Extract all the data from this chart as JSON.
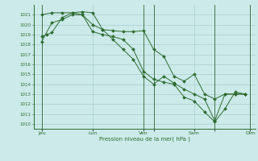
{
  "background_color": "#cceaea",
  "grid_color": "#aacccc",
  "line_color": "#2d6b2d",
  "marker_color": "#2d6b2d",
  "xlabel_text": "Pression niveau de la mer( hPa )",
  "ylim": [
    1009.5,
    1022.0
  ],
  "yticks": [
    1010,
    1011,
    1012,
    1013,
    1014,
    1015,
    1016,
    1017,
    1018,
    1019,
    1020,
    1021
  ],
  "xlim": [
    -0.3,
    21.5
  ],
  "xtick_positions": [
    0.5,
    5.5,
    10.5,
    11.5,
    15.5,
    17.5,
    21.0
  ],
  "xtick_labels": [
    "Jeu",
    "Lun",
    "Ven",
    "",
    "Sam",
    "",
    "Dim"
  ],
  "vlines": [
    0.5,
    10.5,
    11.5,
    17.5,
    21.0
  ],
  "series1_x": [
    0.5,
    1.0,
    1.5,
    2.5,
    3.5,
    4.5,
    5.5,
    6.5,
    7.5,
    8.5,
    9.5,
    10.5,
    11.5,
    12.5,
    13.5,
    14.5,
    15.5,
    16.5,
    17.5,
    18.5,
    19.5,
    20.5
  ],
  "series1_y": [
    1018.8,
    1019.0,
    1019.2,
    1020.7,
    1021.2,
    1021.3,
    1021.2,
    1019.5,
    1019.4,
    1019.3,
    1019.3,
    1019.4,
    1017.5,
    1016.8,
    1014.8,
    1014.3,
    1015.0,
    1013.0,
    1012.5,
    1013.0,
    1013.0,
    1013.0
  ],
  "series2_x": [
    0.5,
    1.5,
    2.5,
    3.5,
    4.5,
    5.5,
    6.5,
    7.5,
    8.5,
    9.5,
    10.5,
    11.5,
    12.5,
    13.5,
    14.5,
    15.5,
    16.5,
    17.5,
    18.5,
    19.5,
    20.5
  ],
  "series2_y": [
    1021.0,
    1021.2,
    1021.2,
    1021.2,
    1021.0,
    1020.0,
    1019.5,
    1018.5,
    1017.5,
    1016.5,
    1014.8,
    1014.0,
    1014.8,
    1014.1,
    1013.5,
    1013.0,
    1012.5,
    1010.3,
    1013.0,
    1013.0,
    1013.0
  ],
  "series3_x": [
    0.5,
    1.5,
    2.5,
    3.5,
    4.5,
    5.5,
    6.5,
    7.5,
    8.5,
    9.5,
    10.5,
    11.5,
    12.5,
    13.5,
    14.5,
    15.5,
    16.5,
    17.5,
    18.5,
    19.5,
    20.5
  ],
  "series3_y": [
    1018.3,
    1020.2,
    1020.5,
    1021.0,
    1021.0,
    1019.3,
    1019.0,
    1018.8,
    1018.5,
    1017.5,
    1015.3,
    1014.5,
    1014.2,
    1014.0,
    1012.7,
    1012.3,
    1011.2,
    1010.2,
    1011.5,
    1013.2,
    1013.0
  ]
}
